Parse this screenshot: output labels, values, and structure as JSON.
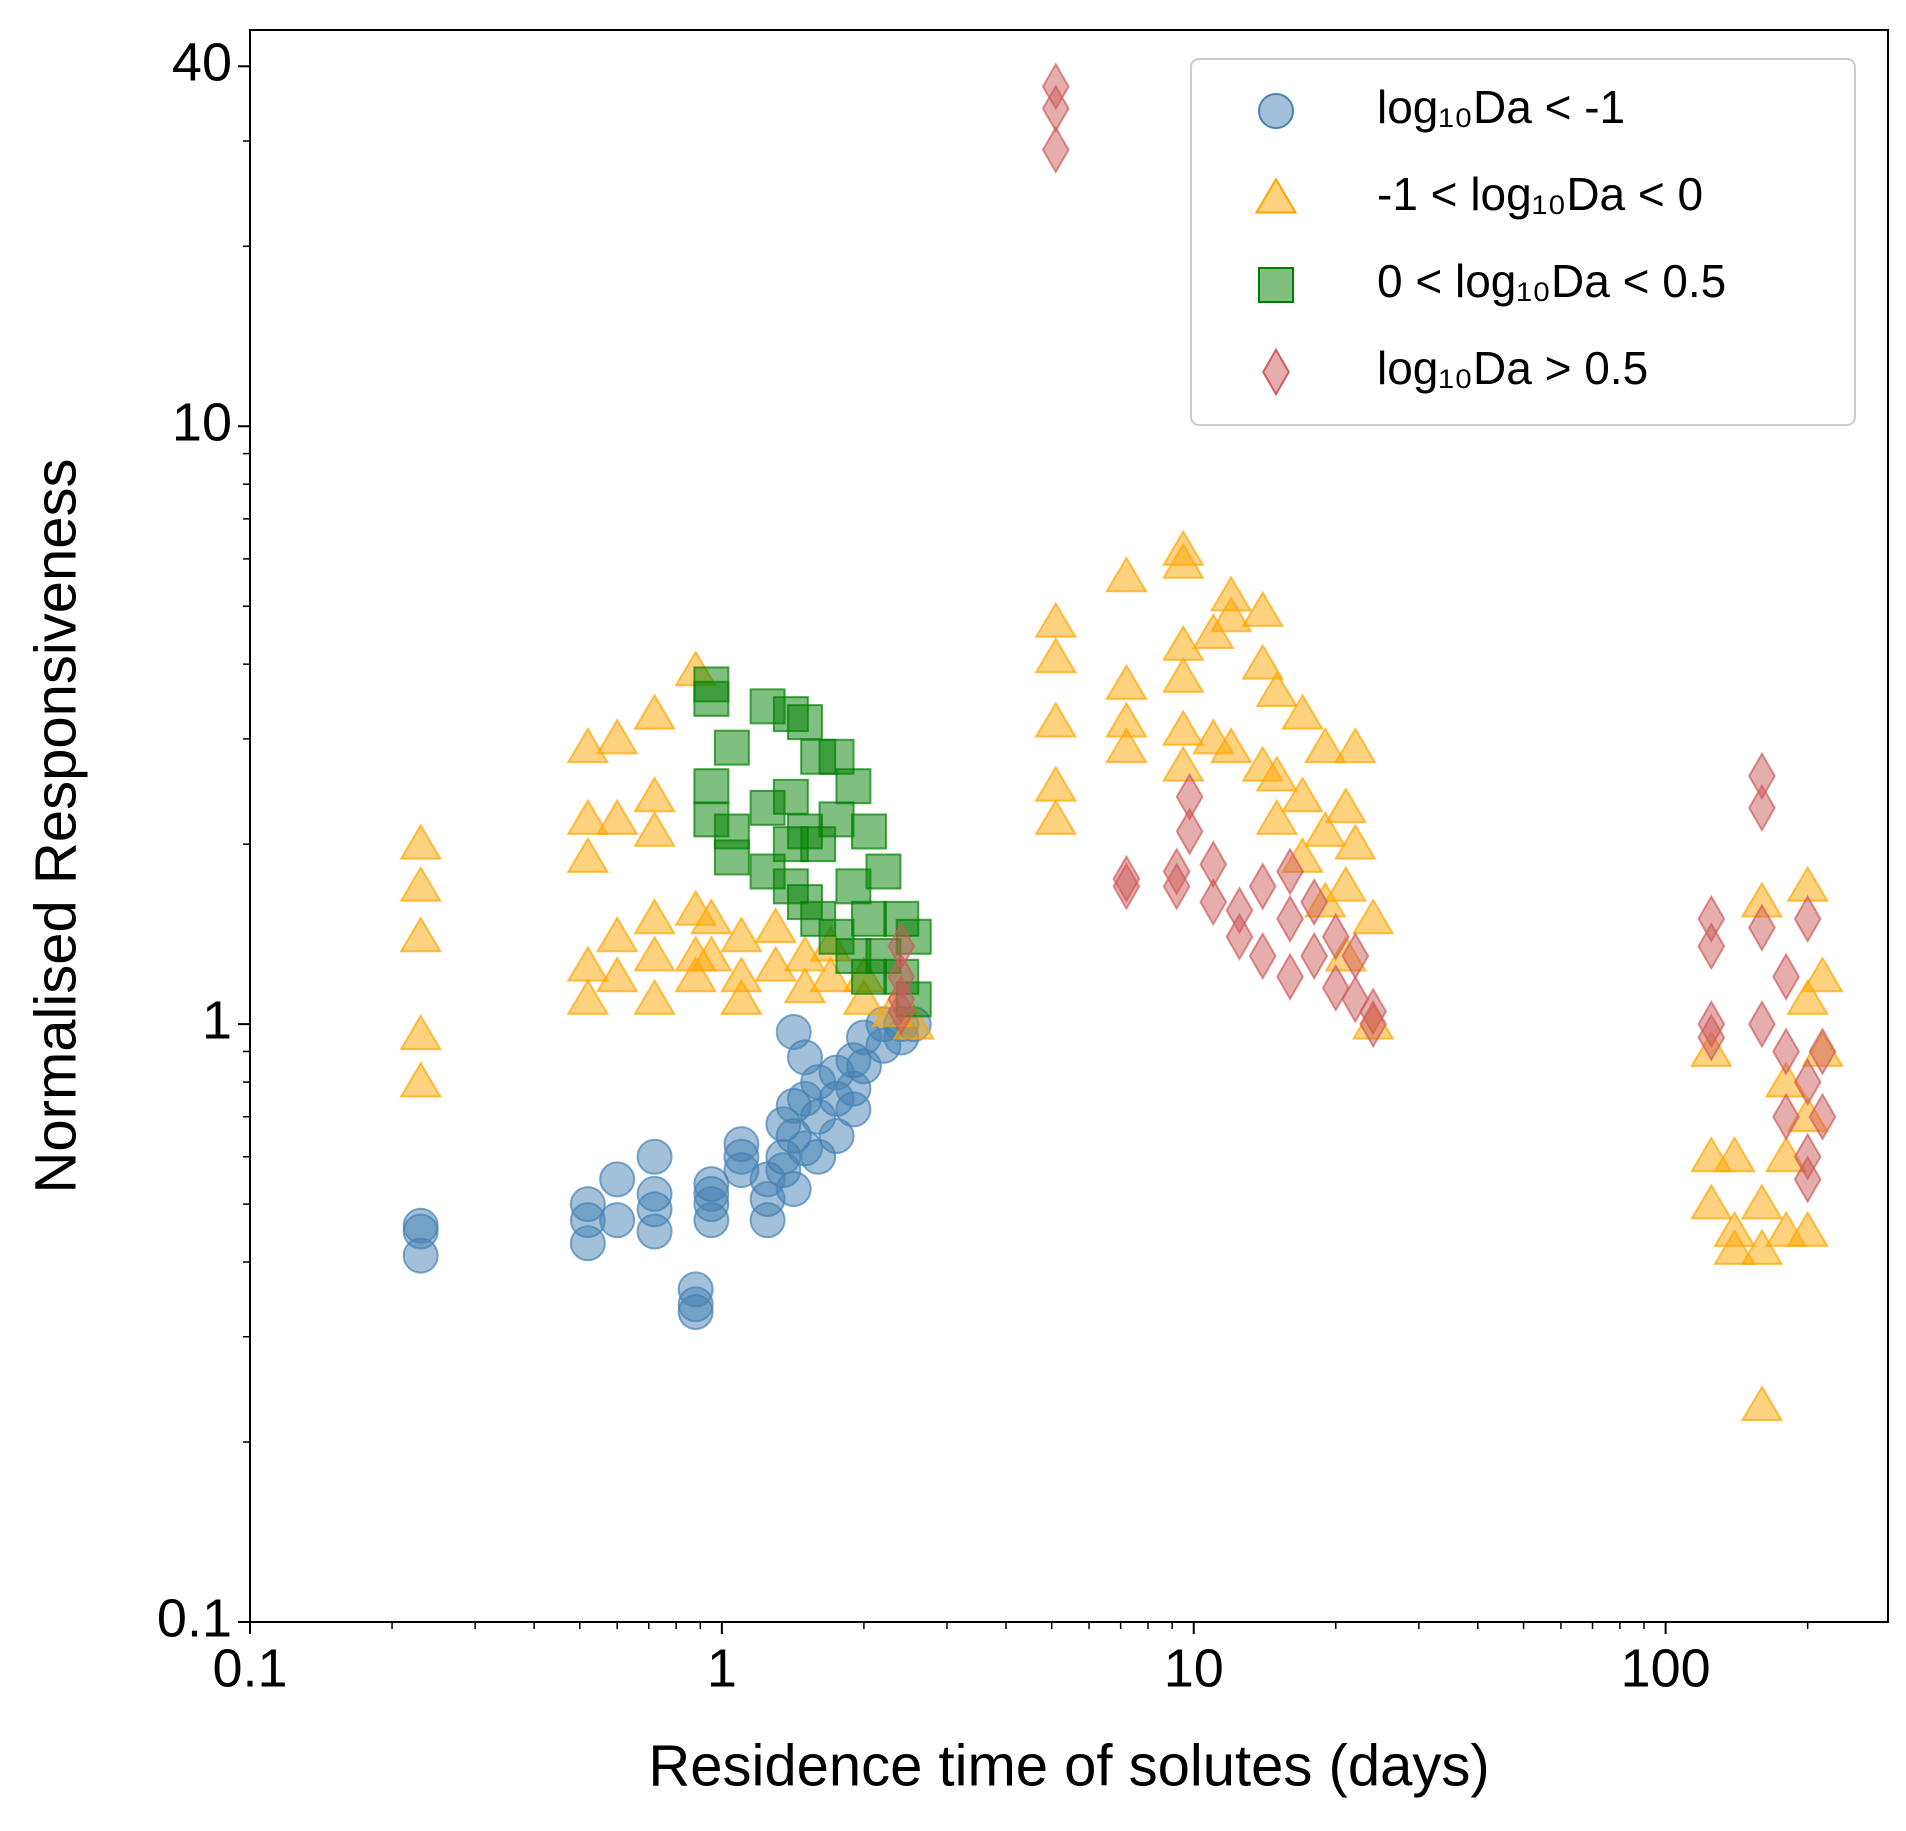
{
  "chart_data": {
    "type": "scatter",
    "xlabel": "Residence time of solutes (days)",
    "ylabel": "Normalised Responsiveness",
    "xscale": "log",
    "yscale": "log",
    "xlim": [
      0.1,
      296
    ],
    "ylim": [
      0.1,
      46
    ],
    "xticks": [
      0.1,
      1,
      10,
      100
    ],
    "yticks": [
      0.1,
      1,
      10,
      40
    ],
    "minor_ticks": true,
    "legend": "upper right",
    "alpha": 0.5,
    "series": [
      {
        "name": "log₁₀Da < -1",
        "color": "#4682b4",
        "marker": "circle",
        "x": [
          0.23,
          0.23,
          0.23,
          0.52,
          0.52,
          0.52,
          0.6,
          0.6,
          0.72,
          0.72,
          0.72,
          0.72,
          0.88,
          0.88,
          0.88,
          0.95,
          0.95,
          0.95,
          0.95,
          1.1,
          1.1,
          1.1,
          1.25,
          1.25,
          1.25,
          1.35,
          1.35,
          1.35,
          1.42,
          1.42,
          1.42,
          1.42,
          1.5,
          1.5,
          1.5,
          1.6,
          1.6,
          1.6,
          1.75,
          1.75,
          1.75,
          1.9,
          1.9,
          1.9,
          2.0,
          2.0,
          2.2,
          2.2,
          2.4,
          2.4,
          2.55
        ],
        "y": [
          0.45,
          0.46,
          0.41,
          0.5,
          0.47,
          0.43,
          0.55,
          0.47,
          0.6,
          0.52,
          0.49,
          0.45,
          0.36,
          0.33,
          0.34,
          0.52,
          0.5,
          0.47,
          0.54,
          0.63,
          0.6,
          0.57,
          0.51,
          0.47,
          0.55,
          0.68,
          0.6,
          0.57,
          0.97,
          0.73,
          0.65,
          0.53,
          0.88,
          0.75,
          0.62,
          0.8,
          0.7,
          0.6,
          0.83,
          0.75,
          0.65,
          0.87,
          0.78,
          0.72,
          0.95,
          0.85,
          1.0,
          0.92,
          1.0,
          0.95,
          1.0
        ]
      },
      {
        "name": "-1 < log₁₀Da < 0",
        "color": "#ffa500",
        "marker": "triangle",
        "x": [
          0.23,
          0.23,
          0.23,
          0.23,
          0.23,
          0.52,
          0.52,
          0.52,
          0.52,
          0.52,
          0.6,
          0.6,
          0.6,
          0.6,
          0.72,
          0.72,
          0.72,
          0.72,
          0.72,
          0.72,
          0.88,
          0.88,
          0.88,
          0.88,
          0.95,
          0.95,
          1.1,
          1.1,
          1.1,
          1.3,
          1.3,
          1.5,
          1.5,
          1.7,
          1.7,
          2.0,
          2.0,
          2.3,
          2.55,
          5.1,
          5.1,
          5.1,
          5.1,
          5.1,
          7.2,
          7.2,
          7.2,
          7.2,
          9.5,
          9.5,
          9.5,
          9.5,
          9.5,
          9.5,
          11,
          11,
          12,
          12,
          12,
          14,
          14,
          14,
          15,
          15,
          15,
          17,
          17,
          17,
          19,
          19,
          19,
          21,
          21,
          21,
          22,
          22,
          24,
          24,
          125,
          125,
          125,
          140,
          140,
          140,
          160,
          160,
          160,
          160,
          180,
          180,
          180,
          200,
          200,
          200,
          200,
          215,
          215
        ],
        "y": [
          2.0,
          1.7,
          1.4,
          0.96,
          0.8,
          2.9,
          2.2,
          1.9,
          1.25,
          1.1,
          3.0,
          2.2,
          1.4,
          1.2,
          3.3,
          2.4,
          2.1,
          1.5,
          1.3,
          1.1,
          3.9,
          1.55,
          1.3,
          1.2,
          1.5,
          1.3,
          1.4,
          1.2,
          1.1,
          1.45,
          1.25,
          1.3,
          1.15,
          1.35,
          1.2,
          1.2,
          1.1,
          1.05,
          1.0,
          4.7,
          4.1,
          3.2,
          2.5,
          2.2,
          5.6,
          3.7,
          3.2,
          2.9,
          6.2,
          5.9,
          4.3,
          3.8,
          3.1,
          2.7,
          4.5,
          3.0,
          5.2,
          4.8,
          2.9,
          4.9,
          4.0,
          2.7,
          3.6,
          2.6,
          2.2,
          3.3,
          2.4,
          1.9,
          2.9,
          2.1,
          1.6,
          2.3,
          1.7,
          1.3,
          2.9,
          2.0,
          1.5,
          1.0,
          0.9,
          0.6,
          0.5,
          0.6,
          0.45,
          0.42,
          1.6,
          0.5,
          0.42,
          0.23,
          0.8,
          0.6,
          0.45,
          1.7,
          1.1,
          0.7,
          0.45,
          1.2,
          0.9
        ]
      },
      {
        "name": "0 < log₁₀Da < 0.5",
        "color": "#008000",
        "marker": "square",
        "x": [
          0.95,
          0.95,
          0.95,
          0.95,
          1.05,
          1.05,
          1.05,
          1.25,
          1.25,
          1.25,
          1.4,
          1.4,
          1.4,
          1.4,
          1.5,
          1.5,
          1.5,
          1.6,
          1.6,
          1.6,
          1.75,
          1.75,
          1.75,
          1.9,
          1.9,
          1.9,
          2.05,
          2.05,
          2.05,
          2.2,
          2.2,
          2.4,
          2.4,
          2.55,
          2.55
        ],
        "y": [
          3.7,
          3.5,
          2.5,
          2.2,
          2.9,
          2.1,
          1.9,
          3.4,
          2.3,
          1.8,
          3.3,
          2.4,
          2.0,
          1.7,
          3.2,
          2.1,
          1.6,
          2.8,
          2.0,
          1.5,
          2.8,
          2.2,
          1.4,
          2.5,
          1.7,
          1.3,
          2.1,
          1.5,
          1.2,
          1.8,
          1.3,
          1.5,
          1.2,
          1.4,
          1.1
        ]
      },
      {
        "name": "log₁₀Da > 0.5",
        "color": "#cd5c5c",
        "marker": "diamond",
        "x": [
          5.1,
          5.1,
          5.1,
          2.4,
          2.4,
          2.4,
          2.4,
          7.2,
          7.2,
          9.2,
          9.2,
          9.8,
          9.8,
          11,
          11,
          12.5,
          12.5,
          14,
          14,
          16,
          16,
          16,
          18,
          18,
          20,
          20,
          22,
          22,
          24,
          24,
          125,
          125,
          125,
          125,
          160,
          160,
          160,
          160,
          180,
          180,
          180,
          200,
          200,
          200,
          200,
          215,
          215
        ],
        "y": [
          37,
          34,
          29,
          1.35,
          1.2,
          1.1,
          1.05,
          1.75,
          1.7,
          1.8,
          1.7,
          2.4,
          2.1,
          1.85,
          1.6,
          1.55,
          1.4,
          1.7,
          1.3,
          1.8,
          1.5,
          1.2,
          1.6,
          1.3,
          1.4,
          1.15,
          1.3,
          1.1,
          1.05,
          1.0,
          1.5,
          1.35,
          1.0,
          0.95,
          2.6,
          2.3,
          1.45,
          1.0,
          1.2,
          0.9,
          0.7,
          1.5,
          0.8,
          0.6,
          0.55,
          0.9,
          0.7
        ]
      }
    ]
  }
}
